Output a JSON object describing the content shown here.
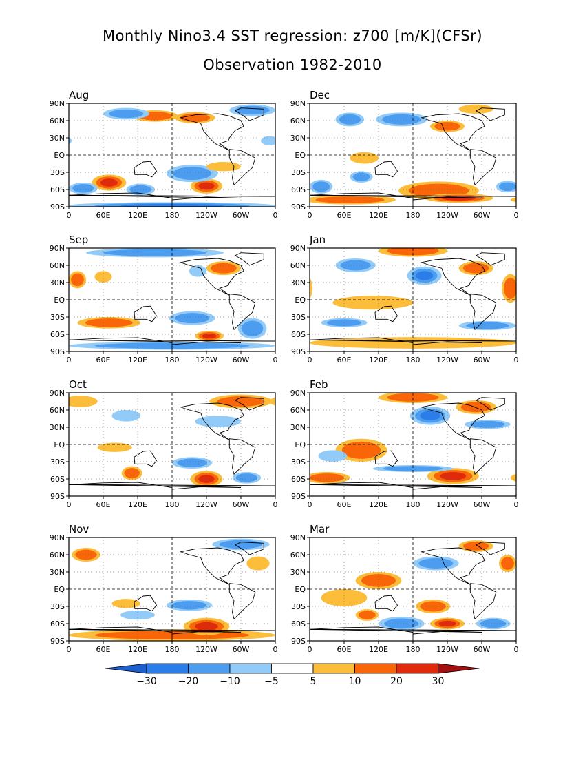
{
  "title": "Monthly Nino3.4 SST regression: z700 [m/K](CFSr)",
  "subtitle": "Observation 1982-2010",
  "lat_ticks": [
    "90N",
    "60N",
    "30N",
    "EQ",
    "30S",
    "60S",
    "90S"
  ],
  "lon_ticks": [
    "0",
    "60E",
    "120E",
    "180",
    "120W",
    "60W",
    "0"
  ],
  "colorbar": {
    "labels": [
      "-30",
      "-20",
      "-10",
      "-5",
      "5",
      "10",
      "20",
      "30"
    ],
    "colors": [
      "#1e5fcf",
      "#2b7de9",
      "#4c9cf0",
      "#93cbf8",
      "#ffffff",
      "#fbbd3a",
      "#f9660a",
      "#e02a0c",
      "#a50f0f"
    ]
  },
  "panels": [
    {
      "label": "Aug",
      "blobs": [
        {
          "lon": 70,
          "lat": -48,
          "rx": 30,
          "ry": 14,
          "v": 25
        },
        {
          "lon": 240,
          "lat": -54,
          "rx": 28,
          "ry": 13,
          "v": 25
        },
        {
          "lon": 215,
          "lat": -32,
          "rx": 45,
          "ry": 15,
          "v": -18
        },
        {
          "lon": 125,
          "lat": -60,
          "rx": 25,
          "ry": 10,
          "v": -15
        },
        {
          "lon": 25,
          "lat": -58,
          "rx": 25,
          "ry": 10,
          "v": -10
        },
        {
          "lon": 180,
          "lat": -88,
          "rx": 180,
          "ry": 6,
          "v": -20
        },
        {
          "lon": 150,
          "lat": 68,
          "rx": 40,
          "ry": 10,
          "v": 10
        },
        {
          "lon": 220,
          "lat": 65,
          "rx": 35,
          "ry": 10,
          "v": 10
        },
        {
          "lon": 100,
          "lat": 72,
          "rx": 40,
          "ry": 10,
          "v": -10
        },
        {
          "lon": 320,
          "lat": 78,
          "rx": 40,
          "ry": 10,
          "v": -10
        },
        {
          "lon": 270,
          "lat": -20,
          "rx": 30,
          "ry": 8,
          "v": 6
        },
        {
          "lon": 350,
          "lat": 25,
          "rx": 15,
          "ry": 8,
          "v": -8
        }
      ]
    },
    {
      "label": "Dec",
      "blobs": [
        {
          "lon": 225,
          "lat": -62,
          "rx": 70,
          "ry": 16,
          "v": 15
        },
        {
          "lon": 260,
          "lat": -75,
          "rx": 60,
          "ry": 8,
          "v": 22
        },
        {
          "lon": 70,
          "lat": -78,
          "rx": 80,
          "ry": 8,
          "v": 10
        },
        {
          "lon": 95,
          "lat": -5,
          "rx": 25,
          "ry": 10,
          "v": 8
        },
        {
          "lon": 90,
          "lat": -38,
          "rx": 20,
          "ry": 10,
          "v": -10
        },
        {
          "lon": 160,
          "lat": 62,
          "rx": 45,
          "ry": 12,
          "v": -15
        },
        {
          "lon": 70,
          "lat": 62,
          "rx": 25,
          "ry": 12,
          "v": -12
        },
        {
          "lon": 240,
          "lat": 50,
          "rx": 30,
          "ry": 10,
          "v": 10
        },
        {
          "lon": 290,
          "lat": 80,
          "rx": 30,
          "ry": 8,
          "v": 8
        },
        {
          "lon": 20,
          "lat": -55,
          "rx": 20,
          "ry": 12,
          "v": -10
        },
        {
          "lon": 345,
          "lat": -55,
          "rx": 20,
          "ry": 10,
          "v": -10
        }
      ]
    },
    {
      "label": "Sep",
      "blobs": [
        {
          "lon": 70,
          "lat": -40,
          "rx": 55,
          "ry": 10,
          "v": 12
        },
        {
          "lon": 245,
          "lat": -63,
          "rx": 25,
          "ry": 9,
          "v": 22
        },
        {
          "lon": 215,
          "lat": -32,
          "rx": 40,
          "ry": 12,
          "v": -15
        },
        {
          "lon": 320,
          "lat": -50,
          "rx": 25,
          "ry": 18,
          "v": -10
        },
        {
          "lon": 180,
          "lat": -80,
          "rx": 180,
          "ry": 7,
          "v": -15
        },
        {
          "lon": 15,
          "lat": 35,
          "rx": 15,
          "ry": 15,
          "v": 15
        },
        {
          "lon": 150,
          "lat": 82,
          "rx": 120,
          "ry": 8,
          "v": -12
        },
        {
          "lon": 60,
          "lat": 40,
          "rx": 15,
          "ry": 10,
          "v": 8
        },
        {
          "lon": 270,
          "lat": 55,
          "rx": 30,
          "ry": 12,
          "v": 10
        },
        {
          "lon": 225,
          "lat": 50,
          "rx": 15,
          "ry": 10,
          "v": -8
        }
      ]
    },
    {
      "label": "Jan",
      "blobs": [
        {
          "lon": 200,
          "lat": 42,
          "rx": 30,
          "ry": 16,
          "v": -20
        },
        {
          "lon": 180,
          "lat": 85,
          "rx": 60,
          "ry": 10,
          "v": 12
        },
        {
          "lon": 110,
          "lat": -5,
          "rx": 70,
          "ry": 12,
          "v": 8
        },
        {
          "lon": 180,
          "lat": -75,
          "rx": 180,
          "ry": 10,
          "v": 8
        },
        {
          "lon": 290,
          "lat": 55,
          "rx": 30,
          "ry": 12,
          "v": 10
        },
        {
          "lon": 80,
          "lat": 60,
          "rx": 35,
          "ry": 12,
          "v": -12
        },
        {
          "lon": 310,
          "lat": -45,
          "rx": 50,
          "ry": 8,
          "v": -10
        },
        {
          "lon": 60,
          "lat": -40,
          "rx": 40,
          "ry": 8,
          "v": -10
        },
        {
          "lon": 350,
          "lat": 20,
          "rx": 15,
          "ry": 25,
          "v": 10
        }
      ]
    },
    {
      "label": "Oct",
      "blobs": [
        {
          "lon": 240,
          "lat": -60,
          "rx": 28,
          "ry": 14,
          "v": 25
        },
        {
          "lon": 110,
          "lat": -50,
          "rx": 18,
          "ry": 12,
          "v": 15
        },
        {
          "lon": 215,
          "lat": -32,
          "rx": 35,
          "ry": 10,
          "v": -12
        },
        {
          "lon": 310,
          "lat": -58,
          "rx": 25,
          "ry": 10,
          "v": -10
        },
        {
          "lon": 300,
          "lat": 75,
          "rx": 55,
          "ry": 12,
          "v": 10
        },
        {
          "lon": 20,
          "lat": 75,
          "rx": 30,
          "ry": 10,
          "v": 8
        },
        {
          "lon": 100,
          "lat": 50,
          "rx": 25,
          "ry": 10,
          "v": -8
        },
        {
          "lon": 260,
          "lat": 40,
          "rx": 40,
          "ry": 10,
          "v": -8
        },
        {
          "lon": 80,
          "lat": -5,
          "rx": 30,
          "ry": 8,
          "v": 8
        }
      ]
    },
    {
      "label": "Feb",
      "blobs": [
        {
          "lon": 210,
          "lat": 50,
          "rx": 35,
          "ry": 16,
          "v": -20
        },
        {
          "lon": 250,
          "lat": -55,
          "rx": 45,
          "ry": 14,
          "v": 20
        },
        {
          "lon": 90,
          "lat": -10,
          "rx": 45,
          "ry": 20,
          "v": 12
        },
        {
          "lon": 180,
          "lat": 82,
          "rx": 60,
          "ry": 10,
          "v": 12
        },
        {
          "lon": 290,
          "lat": 65,
          "rx": 35,
          "ry": 12,
          "v": 15
        },
        {
          "lon": 310,
          "lat": 35,
          "rx": 40,
          "ry": 8,
          "v": -10
        },
        {
          "lon": 30,
          "lat": -58,
          "rx": 40,
          "ry": 10,
          "v": 10
        },
        {
          "lon": 180,
          "lat": -42,
          "rx": 70,
          "ry": 6,
          "v": -10
        },
        {
          "lon": 40,
          "lat": -20,
          "rx": 25,
          "ry": 10,
          "v": -8
        }
      ]
    },
    {
      "label": "Nov",
      "blobs": [
        {
          "lon": 180,
          "lat": -80,
          "rx": 180,
          "ry": 10,
          "v": 18
        },
        {
          "lon": 240,
          "lat": -65,
          "rx": 40,
          "ry": 15,
          "v": 22
        },
        {
          "lon": 210,
          "lat": -28,
          "rx": 40,
          "ry": 10,
          "v": -12
        },
        {
          "lon": 120,
          "lat": -45,
          "rx": 30,
          "ry": 8,
          "v": -8
        },
        {
          "lon": 100,
          "lat": -25,
          "rx": 25,
          "ry": 8,
          "v": 8
        },
        {
          "lon": 300,
          "lat": 78,
          "rx": 50,
          "ry": 10,
          "v": -12
        },
        {
          "lon": 30,
          "lat": 60,
          "rx": 25,
          "ry": 12,
          "v": 10
        },
        {
          "lon": 330,
          "lat": 45,
          "rx": 20,
          "ry": 12,
          "v": 8
        }
      ]
    },
    {
      "label": "Mar",
      "blobs": [
        {
          "lon": 240,
          "lat": -60,
          "rx": 30,
          "ry": 10,
          "v": 22
        },
        {
          "lon": 120,
          "lat": 15,
          "rx": 40,
          "ry": 15,
          "v": 10
        },
        {
          "lon": 215,
          "lat": -30,
          "rx": 30,
          "ry": 12,
          "v": 10
        },
        {
          "lon": 160,
          "lat": -60,
          "rx": 40,
          "ry": 12,
          "v": -15
        },
        {
          "lon": 320,
          "lat": -60,
          "rx": 30,
          "ry": 10,
          "v": -12
        },
        {
          "lon": 220,
          "lat": 45,
          "rx": 40,
          "ry": 12,
          "v": -12
        },
        {
          "lon": 290,
          "lat": 75,
          "rx": 30,
          "ry": 10,
          "v": 15
        },
        {
          "lon": 345,
          "lat": 45,
          "rx": 15,
          "ry": 15,
          "v": 10
        },
        {
          "lon": 60,
          "lat": -15,
          "rx": 40,
          "ry": 15,
          "v": 8
        },
        {
          "lon": 100,
          "lat": -45,
          "rx": 20,
          "ry": 10,
          "v": 10
        }
      ]
    }
  ]
}
